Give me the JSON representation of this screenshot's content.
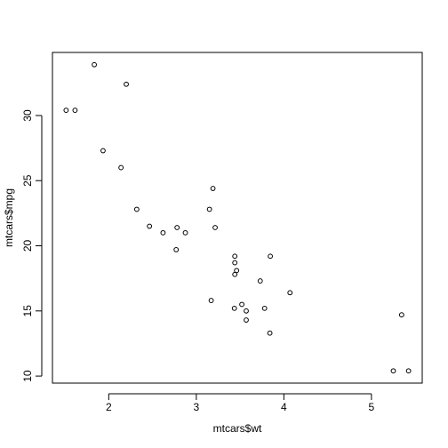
{
  "chart_data": {
    "type": "scatter",
    "xlabel": "mtcars$wt",
    "ylabel": "mtcars$mpg",
    "x": [
      2.62,
      2.875,
      2.32,
      3.215,
      3.44,
      3.46,
      3.57,
      3.19,
      3.15,
      3.44,
      3.44,
      4.07,
      3.73,
      3.78,
      5.25,
      5.424,
      5.345,
      2.2,
      1.615,
      1.835,
      2.465,
      3.52,
      3.435,
      3.84,
      3.845,
      1.935,
      2.14,
      1.513,
      3.17,
      2.77,
      3.57,
      2.78
    ],
    "values": [
      21.0,
      21.0,
      22.8,
      21.4,
      18.7,
      18.1,
      14.3,
      24.4,
      22.8,
      19.2,
      17.8,
      16.4,
      17.3,
      15.2,
      10.4,
      10.4,
      14.7,
      32.4,
      30.4,
      33.9,
      21.5,
      15.5,
      15.2,
      13.3,
      19.2,
      27.3,
      26.0,
      30.4,
      15.8,
      19.7,
      15.0,
      21.4
    ],
    "color": "#000000",
    "xlim": [
      1.357,
      5.58
    ],
    "ylim": [
      9.46,
      34.84
    ],
    "xticks": [
      2,
      3,
      4,
      5
    ],
    "yticks": [
      10,
      15,
      20,
      25,
      30
    ]
  }
}
